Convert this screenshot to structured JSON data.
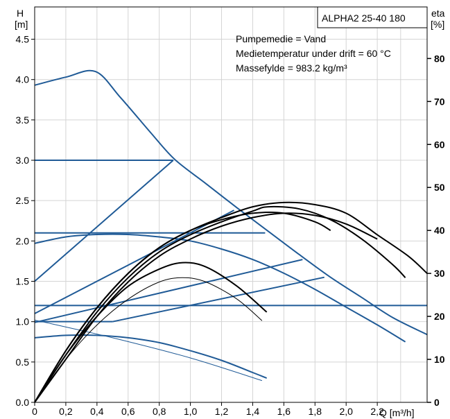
{
  "chart_data": {
    "type": "line",
    "title": "ALPHA2 25-40 180",
    "annotations": [
      "Pumpemedie = Vand",
      "Medietemperatur under drift = 60 °C",
      "Massefylde = 983.2 kg/m³"
    ],
    "ylabel_left": [
      "H",
      "[m]"
    ],
    "ylabel_right": [
      "eta",
      "[%]"
    ],
    "xlabel": "Q [m³/h]",
    "x_ticks": [
      "0",
      "0,2",
      "0,4",
      "0,6",
      "0,8",
      "1,0",
      "1,2",
      "1,4",
      "1,6",
      "1,8",
      "2,0",
      "2,2"
    ],
    "y_left_ticks": [
      "0.0",
      "0.5",
      "1.0",
      "1.5",
      "2.0",
      "2.5",
      "3.0",
      "3.5",
      "4.0",
      "4.5"
    ],
    "y_right_ticks": [
      "0",
      "10",
      "20",
      "30",
      "40",
      "50",
      "60",
      "70",
      "80"
    ],
    "xlim": [
      0,
      2.52
    ],
    "ylim_left": [
      0,
      4.9
    ],
    "ylim_right": [
      0,
      92
    ],
    "grid": true,
    "colors": {
      "head": "#1f5a96",
      "efficiency": "#000000"
    },
    "head_curves": [
      {
        "x": [
          0,
          0.2,
          0.39,
          0.55,
          0.75,
          0.9,
          1.1,
          1.3,
          1.5,
          1.7,
          1.9,
          2.1,
          2.3,
          2.52
        ],
        "y": [
          3.93,
          4.03,
          4.1,
          3.78,
          3.33,
          3.01,
          2.71,
          2.41,
          2.12,
          1.83,
          1.55,
          1.3,
          1.05,
          0.84
        ]
      },
      {
        "x": [
          0,
          0.2,
          0.4,
          0.6,
          0.8,
          1.0,
          1.2,
          1.4,
          1.6,
          1.8,
          2.0,
          2.2,
          2.38
        ],
        "y": [
          1.97,
          2.05,
          2.08,
          2.08,
          2.05,
          2.0,
          1.9,
          1.77,
          1.6,
          1.4,
          1.18,
          0.96,
          0.75
        ]
      },
      {
        "x": [
          0,
          0.2,
          0.4,
          0.6,
          0.8,
          1.0,
          1.2,
          1.4,
          1.49
        ],
        "y": [
          0.8,
          0.83,
          0.83,
          0.8,
          0.74,
          0.64,
          0.52,
          0.37,
          0.3
        ]
      },
      {
        "x": [
          0,
          0.5,
          1.0,
          1.46
        ],
        "y": [
          1.02,
          0.8,
          0.55,
          0.27
        ]
      }
    ],
    "constant_pressure_lines": [
      {
        "x": [
          0,
          0.89
        ],
        "y": [
          3.0,
          3.0
        ]
      },
      {
        "x": [
          0,
          1.48
        ],
        "y": [
          2.1,
          2.1
        ]
      },
      {
        "x": [
          0,
          2.52
        ],
        "y": [
          1.2,
          1.2
        ]
      }
    ],
    "proportional_pressure_lines": [
      {
        "x": [
          0,
          0.89
        ],
        "y": [
          1.5,
          3.0
        ]
      },
      {
        "x": [
          0,
          1.28
        ],
        "y": [
          1.1,
          2.38
        ]
      },
      {
        "x": [
          0,
          1.72
        ],
        "y": [
          0.99,
          1.77
        ]
      },
      {
        "x": [
          0.5,
          1.86
        ],
        "y": [
          1.0,
          1.55
        ]
      }
    ],
    "efficiency_curves": [
      {
        "x": [
          0,
          0.2,
          0.4,
          0.6,
          0.8,
          1.0,
          1.2,
          1.4,
          1.6,
          1.8,
          2.0,
          2.2,
          2.4,
          2.52
        ],
        "y": [
          0,
          12,
          22,
          30,
          36,
          40,
          43,
          45.5,
          46.5,
          46,
          44,
          39,
          34,
          30
        ]
      },
      {
        "x": [
          0,
          0.2,
          0.4,
          0.6,
          0.8,
          1.0,
          1.2,
          1.4,
          1.5,
          1.7,
          1.9,
          2.1,
          2.3,
          2.38
        ],
        "y": [
          0,
          11,
          21,
          29,
          35,
          39,
          42,
          44.5,
          45.5,
          45,
          42.5,
          38,
          32,
          29
        ]
      },
      {
        "x": [
          0,
          0.2,
          0.4,
          0.6,
          0.8,
          1.0,
          1.2,
          1.4,
          1.6,
          1.8,
          2.0,
          2.2
        ],
        "y": [
          0,
          10,
          20,
          28,
          34,
          38,
          41,
          43,
          44,
          43.5,
          41.5,
          38
        ]
      },
      {
        "x": [
          0,
          0.2,
          0.4,
          0.6,
          0.8,
          1.0,
          1.2,
          1.4,
          1.6,
          1.8,
          1.9
        ],
        "y": [
          0,
          12,
          22,
          30,
          36,
          40,
          42.5,
          44,
          44,
          42,
          40
        ]
      },
      {
        "x": [
          0,
          0.2,
          0.4,
          0.6,
          0.8,
          0.95,
          1.1,
          1.3,
          1.49
        ],
        "y": [
          0,
          11,
          20,
          27,
          31,
          32.5,
          31.5,
          27,
          21
        ]
      },
      {
        "x": [
          0,
          0.2,
          0.4,
          0.6,
          0.8,
          0.95,
          1.1,
          1.3,
          1.46
        ],
        "y": [
          0,
          10,
          18,
          24,
          28,
          29,
          28,
          24,
          19
        ]
      }
    ]
  }
}
